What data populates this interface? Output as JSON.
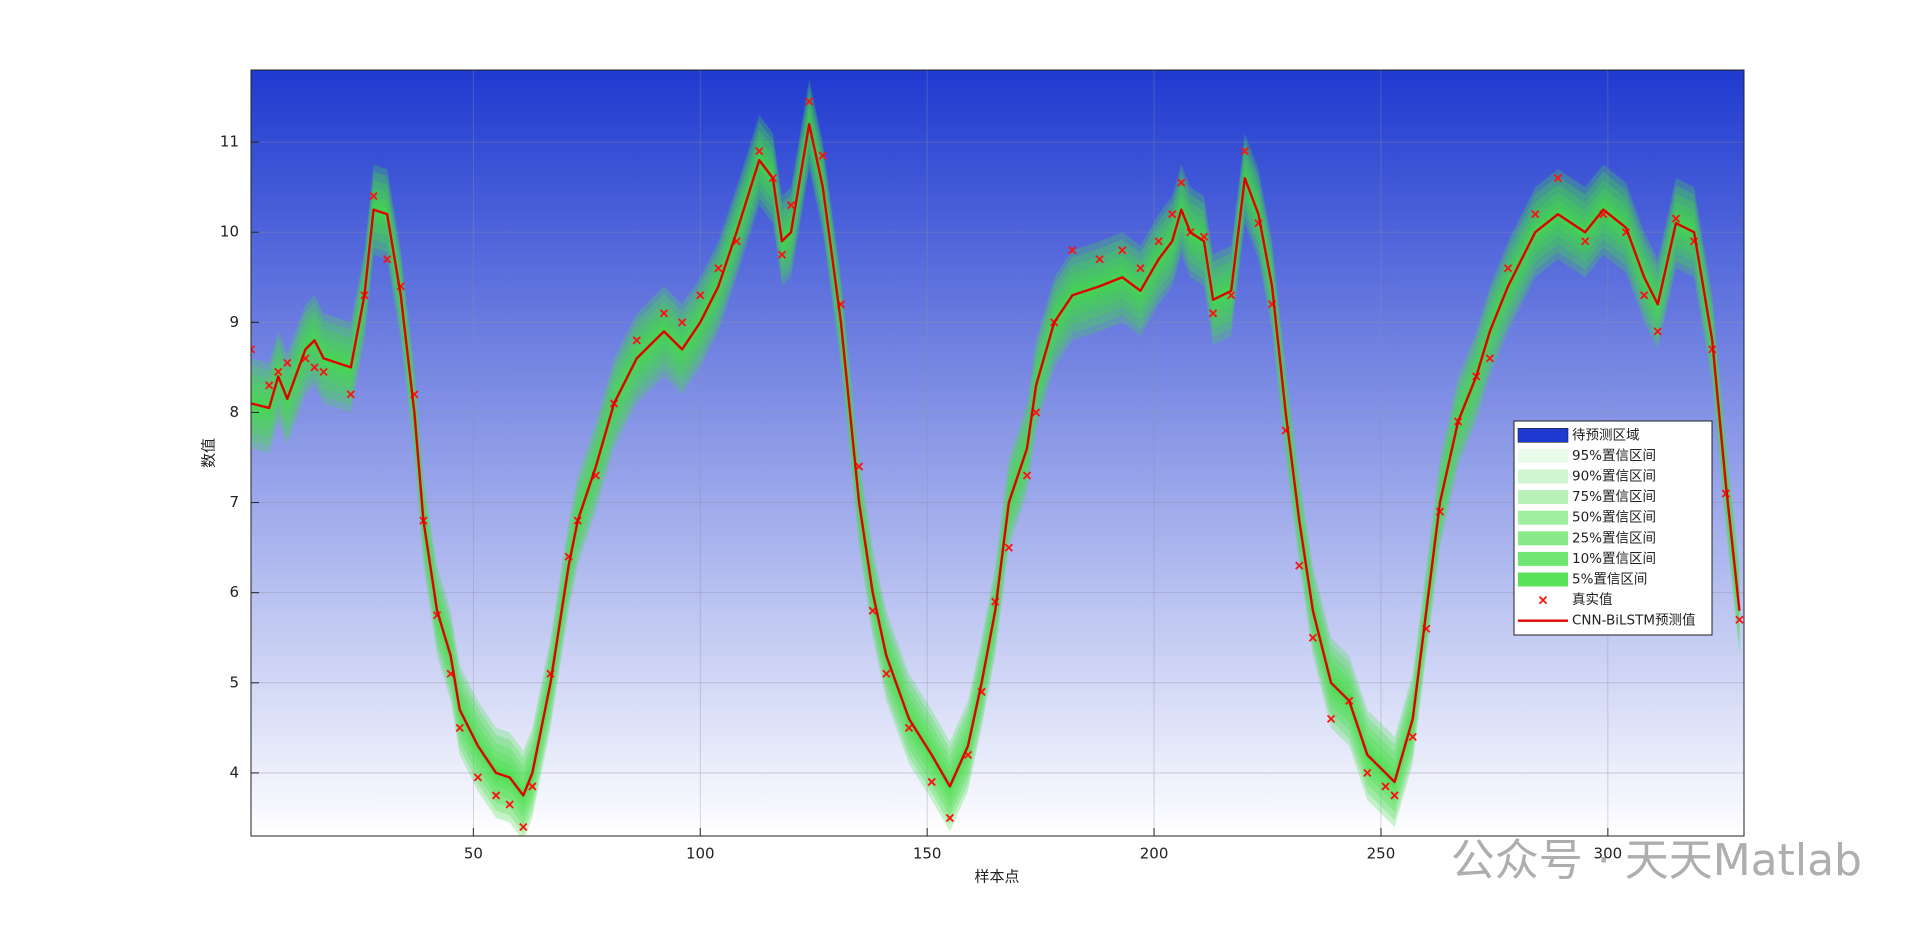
{
  "chart_data": {
    "type": "line",
    "xlabel": "样本点",
    "ylabel": "数值",
    "watermark": "公众号 · 天天Matlab",
    "xlim": [
      1,
      330
    ],
    "ylim": [
      3.3,
      11.8
    ],
    "xticks": [
      50,
      100,
      150,
      200,
      250,
      300
    ],
    "yticks": [
      4,
      5,
      6,
      7,
      8,
      9,
      10,
      11
    ],
    "grid": true,
    "legend": "east",
    "region": {
      "name": "待预测区域",
      "color": "#1f3ad0"
    },
    "bands": [
      {
        "name": "95%置信区间",
        "color": "#44dd44",
        "half_width": 0.5
      },
      {
        "name": "90%置信区间",
        "color": "#44dd44",
        "half_width": 0.42
      },
      {
        "name": "75%置信区间",
        "color": "#44dd44",
        "half_width": 0.33
      },
      {
        "name": "50%置信区间",
        "color": "#44dd44",
        "half_width": 0.24
      },
      {
        "name": "25%置信区间",
        "color": "#44dd44",
        "half_width": 0.15
      },
      {
        "name": "10%置信区间",
        "color": "#44dd44",
        "half_width": 0.08
      },
      {
        "name": "5%置信区间",
        "color": "#44dd44",
        "half_width": 0.05
      }
    ],
    "x": [
      1,
      5,
      7,
      9,
      13,
      15,
      17,
      23,
      26,
      28,
      31,
      34,
      37,
      39,
      42,
      45,
      47,
      51,
      55,
      58,
      61,
      63,
      67,
      71,
      73,
      77,
      81,
      86,
      92,
      96,
      100,
      104,
      108,
      113,
      116,
      118,
      120,
      124,
      127,
      131,
      135,
      138,
      141,
      146,
      151,
      155,
      159,
      162,
      165,
      168,
      172,
      174,
      178,
      182,
      188,
      193,
      197,
      201,
      204,
      206,
      208,
      211,
      213,
      217,
      220,
      223,
      226,
      229,
      232,
      235,
      239,
      243,
      247,
      251,
      253,
      257,
      260,
      263,
      267,
      271,
      274,
      278,
      284,
      289,
      295,
      299,
      304,
      308,
      311,
      315,
      319,
      323,
      326,
      329
    ],
    "series": [
      {
        "name": "真实值",
        "color": "#ff1010",
        "marker": "x",
        "values": [
          8.7,
          8.3,
          8.45,
          8.55,
          8.6,
          8.5,
          8.45,
          8.2,
          9.3,
          10.4,
          9.7,
          9.4,
          8.2,
          6.8,
          5.75,
          5.1,
          4.5,
          3.95,
          3.75,
          3.65,
          3.4,
          3.85,
          5.1,
          6.4,
          6.8,
          7.3,
          8.1,
          8.8,
          9.1,
          9.0,
          9.3,
          9.6,
          9.9,
          10.9,
          10.6,
          9.75,
          10.3,
          11.45,
          10.85,
          9.2,
          7.4,
          5.8,
          5.1,
          4.5,
          3.9,
          3.5,
          4.2,
          4.9,
          5.9,
          6.5,
          7.3,
          8.0,
          9.0,
          9.8,
          9.7,
          9.8,
          9.6,
          9.9,
          10.2,
          10.55,
          10.0,
          9.95,
          9.1,
          9.3,
          10.9,
          10.1,
          9.2,
          7.8,
          6.3,
          5.5,
          4.6,
          4.8,
          4.0,
          3.85,
          3.75,
          4.4,
          5.6,
          6.9,
          7.9,
          8.4,
          8.6,
          9.6,
          10.2,
          10.6,
          9.9,
          10.2,
          10.0,
          9.3,
          8.9,
          10.15,
          9.9,
          8.7,
          7.1,
          5.7
        ]
      },
      {
        "name": "CNN-BiLSTM预测值",
        "color": "#e00000",
        "values": [
          8.1,
          8.05,
          8.4,
          8.15,
          8.7,
          8.8,
          8.6,
          8.5,
          9.3,
          10.25,
          10.2,
          9.3,
          8.0,
          6.8,
          5.8,
          5.3,
          4.7,
          4.3,
          4.0,
          3.95,
          3.75,
          4.0,
          5.0,
          6.3,
          6.8,
          7.4,
          8.1,
          8.6,
          8.9,
          8.7,
          9.0,
          9.4,
          10.0,
          10.8,
          10.6,
          9.9,
          10.0,
          11.2,
          10.5,
          9.0,
          7.0,
          6.0,
          5.3,
          4.6,
          4.2,
          3.85,
          4.3,
          5.0,
          5.8,
          7.0,
          7.6,
          8.3,
          9.0,
          9.3,
          9.4,
          9.5,
          9.35,
          9.7,
          9.9,
          10.25,
          10.0,
          9.9,
          9.25,
          9.35,
          10.6,
          10.2,
          9.4,
          8.0,
          6.8,
          5.8,
          5.0,
          4.8,
          4.2,
          4.0,
          3.9,
          4.6,
          5.8,
          7.0,
          7.9,
          8.4,
          8.9,
          9.4,
          10.0,
          10.2,
          10.0,
          10.25,
          10.05,
          9.5,
          9.2,
          10.1,
          10.0,
          8.8,
          7.2,
          5.8
        ]
      }
    ]
  }
}
